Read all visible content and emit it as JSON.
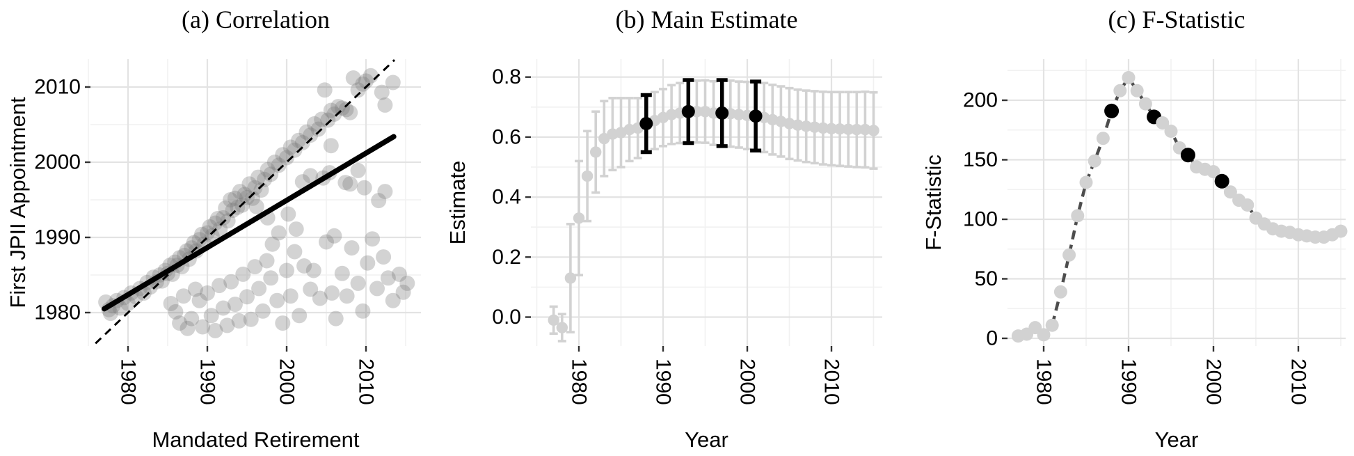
{
  "colors": {
    "background": "#ffffff",
    "grid_major": "#e3e3e3",
    "grid_minor": "#f1f1f1",
    "tick_mark": "#333333",
    "text": "#000000",
    "scatter_point": "#787878",
    "gray_series": "#d2d2d2",
    "highlight": "#000000",
    "fit_line": "#000000",
    "dark_line": "#4d4d4d"
  },
  "chart_data": [
    {
      "panel": "a",
      "type": "scatter",
      "title": "(a) Correlation",
      "xlabel": "Mandated Retirement",
      "ylabel": "First JPII Appointment",
      "xticks": {
        "values": [
          1980,
          1990,
          2000,
          2010
        ],
        "labels": [
          "1980",
          "1990",
          "2000",
          "2010"
        ]
      },
      "yticks": {
        "values": [
          1980,
          1990,
          2000,
          2010
        ],
        "labels": [
          "1980",
          "1990",
          "2000",
          "2010"
        ]
      },
      "xlim": [
        1975.3,
        2016.9
      ],
      "ylim": [
        1975.6,
        2013.7
      ],
      "grid": {
        "x_minor": [
          1975,
          1985,
          1995,
          2005,
          2015
        ],
        "y_minor": [
          1985,
          1995,
          2005
        ]
      },
      "identity_line": {
        "style": "dashed",
        "from": 1975.9,
        "to": 2013.6
      },
      "fit_line": {
        "x1": 1977.0,
        "y1": 1980.5,
        "x2": 2013.5,
        "y2": 2003.4
      },
      "points": [
        [
          1977.2,
          1981.4
        ],
        [
          1977.8,
          1979.9
        ],
        [
          1977.6,
          1980.4
        ],
        [
          1978.1,
          1980.9
        ],
        [
          1978.6,
          1981.6
        ],
        [
          1979,
          1980.6
        ],
        [
          1979.5,
          1982
        ],
        [
          1980,
          1981.2
        ],
        [
          1980.4,
          1982.6
        ],
        [
          1981,
          1982.1
        ],
        [
          1981.5,
          1983.2
        ],
        [
          1982,
          1982.6
        ],
        [
          1982.4,
          1984
        ],
        [
          1982.8,
          1983.4
        ],
        [
          1983.2,
          1984.7
        ],
        [
          1983.6,
          1984.1
        ],
        [
          1984,
          1985
        ],
        [
          1984.3,
          1984.2
        ],
        [
          1984.7,
          1985.6
        ],
        [
          1985,
          1985.2
        ],
        [
          1985.3,
          1986.3
        ],
        [
          1985.6,
          1985.1
        ],
        [
          1985.9,
          1986.7
        ],
        [
          1986.2,
          1986.3
        ],
        [
          1986.5,
          1987.3
        ],
        [
          1986.8,
          1986.1
        ],
        [
          1987.1,
          1987.6
        ],
        [
          1987.4,
          1988.2
        ],
        [
          1987.7,
          1987.1
        ],
        [
          1988,
          1988.6
        ],
        [
          1988.3,
          1989.3
        ],
        [
          1988.6,
          1988.2
        ],
        [
          1989,
          1989.7
        ],
        [
          1989.3,
          1990.4
        ],
        [
          1989.6,
          1989.1
        ],
        [
          1990,
          1990.6
        ],
        [
          1990.3,
          1991.4
        ],
        [
          1990.6,
          1990.2
        ],
        [
          1991,
          1991.9
        ],
        [
          1991.3,
          1992.5
        ],
        [
          1991.6,
          1991.1
        ],
        [
          1992,
          1992.6
        ],
        [
          1992.3,
          1993.9
        ],
        [
          1992.6,
          1992.2
        ],
        [
          1992.9,
          1995
        ],
        [
          1993.2,
          1993.6
        ],
        [
          1993.5,
          1995.2
        ],
        [
          1993.8,
          1994
        ],
        [
          1994.1,
          1996.1
        ],
        [
          1994.4,
          1994.3
        ],
        [
          1994.7,
          1995.7
        ],
        [
          1995,
          1995.3
        ],
        [
          1995.3,
          1997.1
        ],
        [
          1995.7,
          1995.2
        ],
        [
          1996,
          1996.6
        ],
        [
          1996.4,
          1998
        ],
        [
          1996.8,
          1996.3
        ],
        [
          1997.2,
          1997.7
        ],
        [
          1997.6,
          1999
        ],
        [
          1998,
          1998.4
        ],
        [
          1998.5,
          2000
        ],
        [
          1999,
          1999.6
        ],
        [
          1999.5,
          2001
        ],
        [
          2000,
          2000.6
        ],
        [
          2000.5,
          2002
        ],
        [
          2001,
          2001.6
        ],
        [
          2001.5,
          2002.9
        ],
        [
          2002,
          2002.6
        ],
        [
          2002.5,
          2004
        ],
        [
          2003,
          2003.6
        ],
        [
          2003.5,
          2005.1
        ],
        [
          2004,
          2004.4
        ],
        [
          2004.4,
          2005.7
        ],
        [
          2004.8,
          2009.6
        ],
        [
          2005.2,
          2005.6
        ],
        [
          2005.6,
          2006.9
        ],
        [
          2006,
          2006.4
        ],
        [
          2006.5,
          2007.4
        ],
        [
          2007,
          2007.2
        ],
        [
          2007.5,
          2007
        ],
        [
          2008,
          2006.6
        ],
        [
          2008.4,
          2011.2
        ],
        [
          2009,
          2009.6
        ],
        [
          2009.6,
          2010.4
        ],
        [
          2010,
          2010.8
        ],
        [
          2010.6,
          2011.5
        ],
        [
          2012,
          2009.3
        ],
        [
          2012.4,
          2007.6
        ],
        [
          2013.4,
          2010.6
        ],
        [
          1985.4,
          1981.2
        ],
        [
          1986,
          1980.1
        ],
        [
          1986.5,
          1978.6
        ],
        [
          1987,
          1982.2
        ],
        [
          1987.5,
          1977.9
        ],
        [
          1988,
          1979.2
        ],
        [
          1988.5,
          1983.1
        ],
        [
          1989,
          1981.6
        ],
        [
          1989.4,
          1978.1
        ],
        [
          1990,
          1982.6
        ],
        [
          1990.5,
          1979.6
        ],
        [
          1991,
          1977.6
        ],
        [
          1991.5,
          1983.6
        ],
        [
          1992,
          1980.6
        ],
        [
          1992.5,
          1978.3
        ],
        [
          1993,
          1984.1
        ],
        [
          1993.5,
          1981.1
        ],
        [
          1994,
          1978.9
        ],
        [
          1994.5,
          1985.1
        ],
        [
          1995,
          1982.1
        ],
        [
          1995.5,
          1979.1
        ],
        [
          1996,
          1986.1
        ],
        [
          1996.5,
          1983.2
        ],
        [
          1997,
          1980.2
        ],
        [
          1997.5,
          1986.9
        ],
        [
          1998,
          1984.6
        ],
        [
          1998.8,
          1981.6
        ],
        [
          1999.5,
          1978.6
        ],
        [
          2000,
          1985.6
        ],
        [
          2000.5,
          1982.2
        ],
        [
          2001,
          1988.1
        ],
        [
          2001.6,
          1979.6
        ],
        [
          2002.2,
          1986.2
        ],
        [
          2003,
          1983.1
        ],
        [
          2003.4,
          1985.6
        ],
        [
          2004.2,
          1981.9
        ],
        [
          2005,
          1989.4
        ],
        [
          2005.7,
          1982.6
        ],
        [
          2006.2,
          1979.2
        ],
        [
          2007,
          1985.2
        ],
        [
          2007.6,
          1982.2
        ],
        [
          2008.2,
          1988.6
        ],
        [
          2009,
          1983.9
        ],
        [
          2009.6,
          1980.2
        ],
        [
          2010.2,
          1986.6
        ],
        [
          2010.8,
          1989.8
        ],
        [
          2011.4,
          1983.2
        ],
        [
          2012.2,
          1987.4
        ],
        [
          2012.8,
          1984.6
        ],
        [
          2013.4,
          1981.6
        ],
        [
          2014.2,
          1985.1
        ],
        [
          2014.7,
          1982.7
        ],
        [
          2015.2,
          1983.9
        ],
        [
          1996.2,
          1994.1
        ],
        [
          1997.6,
          1992.6
        ],
        [
          1999,
          1990.6
        ],
        [
          2000.2,
          1993.1
        ],
        [
          2002,
          1997.4
        ],
        [
          2003,
          1998.2
        ],
        [
          2004.6,
          1997.9
        ],
        [
          2005.4,
          1998.6
        ],
        [
          2008,
          1997.1
        ],
        [
          2009.8,
          1996.6
        ],
        [
          2001.2,
          1991.1
        ],
        [
          1998.2,
          1989.1
        ],
        [
          2006,
          1990.2
        ],
        [
          2011.6,
          1994.9
        ],
        [
          2012.4,
          1996.1
        ],
        [
          2005.6,
          2002.2
        ],
        [
          2009,
          1998.9
        ],
        [
          2007.4,
          1997.3
        ]
      ]
    },
    {
      "panel": "b",
      "type": "errorbar",
      "title": "(b) Main Estimate",
      "xlabel": "Year",
      "ylabel": "Estimate",
      "xticks": {
        "values": [
          1980,
          1990,
          2000,
          2010
        ],
        "labels": [
          "1980",
          "1990",
          "2000",
          "2010"
        ]
      },
      "yticks": {
        "values": [
          0,
          0.2,
          0.4,
          0.6,
          0.8
        ],
        "labels": [
          "0.0",
          "0.2",
          "0.4",
          "0.6",
          "0.8"
        ]
      },
      "xlim": [
        1974.3,
        2016.0
      ],
      "ylim": [
        -0.096,
        0.86
      ],
      "grid": {
        "x_minor": [
          1975,
          1985,
          1995,
          2005,
          2015
        ],
        "y_minor": [
          0.1,
          0.3,
          0.5,
          0.7
        ]
      },
      "years": [
        1977,
        1978,
        1979,
        1980,
        1981,
        1982,
        1983,
        1984,
        1985,
        1986,
        1987,
        1988,
        1989,
        1990,
        1991,
        1992,
        1993,
        1994,
        1995,
        1996,
        1997,
        1998,
        1999,
        2000,
        2001,
        2002,
        2003,
        2004,
        2005,
        2006,
        2007,
        2008,
        2009,
        2010,
        2011,
        2012,
        2013,
        2014,
        2015
      ],
      "estimates": [
        -0.01,
        -0.035,
        0.13,
        0.33,
        0.47,
        0.55,
        0.595,
        0.61,
        0.615,
        0.625,
        0.63,
        0.645,
        0.655,
        0.665,
        0.675,
        0.68,
        0.685,
        0.685,
        0.685,
        0.68,
        0.68,
        0.678,
        0.675,
        0.672,
        0.67,
        0.665,
        0.658,
        0.652,
        0.645,
        0.64,
        0.636,
        0.633,
        0.63,
        0.628,
        0.627,
        0.626,
        0.625,
        0.625,
        0.622
      ],
      "ci_halfwidth": [
        0.045,
        0.045,
        0.18,
        0.19,
        0.15,
        0.135,
        0.125,
        0.12,
        0.115,
        0.105,
        0.1,
        0.095,
        0.095,
        0.095,
        0.098,
        0.1,
        0.105,
        0.103,
        0.104,
        0.106,
        0.11,
        0.11,
        0.11,
        0.112,
        0.115,
        0.115,
        0.116,
        0.117,
        0.118,
        0.118,
        0.119,
        0.12,
        0.121,
        0.122,
        0.123,
        0.124,
        0.125,
        0.126,
        0.127
      ],
      "highlight_years": [
        1988,
        1993,
        1997,
        2001
      ]
    },
    {
      "panel": "c",
      "type": "line",
      "title": "(c) F-Statistic",
      "xlabel": "Year",
      "ylabel": "F-Statistic",
      "xticks": {
        "values": [
          1980,
          1990,
          2000,
          2010
        ],
        "labels": [
          "1980",
          "1990",
          "2000",
          "2010"
        ]
      },
      "yticks": {
        "values": [
          0,
          50,
          100,
          150,
          200
        ],
        "labels": [
          "0",
          "50",
          "100",
          "150",
          "200"
        ]
      },
      "xlim": [
        1975.7,
        2015.6
      ],
      "ylim": [
        -6.4,
        234.5
      ],
      "grid": {
        "x_minor": [
          1985,
          1995,
          2005,
          2015
        ],
        "y_minor": [
          25,
          75,
          125,
          175,
          225
        ]
      },
      "years": [
        1977,
        1978,
        1979,
        1980,
        1981,
        1982,
        1983,
        1984,
        1985,
        1986,
        1987,
        1988,
        1989,
        1990,
        1991,
        1992,
        1993,
        1994,
        1995,
        1996,
        1997,
        1998,
        1999,
        2000,
        2001,
        2002,
        2003,
        2004,
        2005,
        2006,
        2007,
        2008,
        2009,
        2010,
        2011,
        2012,
        2013,
        2014,
        2015
      ],
      "values": [
        2,
        3.5,
        9,
        3,
        11,
        39,
        70,
        103,
        131,
        149,
        168,
        191,
        208,
        219,
        208,
        197,
        186,
        181,
        174,
        160,
        154,
        144,
        142,
        140,
        132,
        123,
        116,
        112,
        101,
        96,
        92,
        90,
        89,
        87,
        86,
        85,
        85,
        87,
        90
      ],
      "highlight_years": [
        1988,
        1993,
        1997,
        2001
      ]
    }
  ]
}
